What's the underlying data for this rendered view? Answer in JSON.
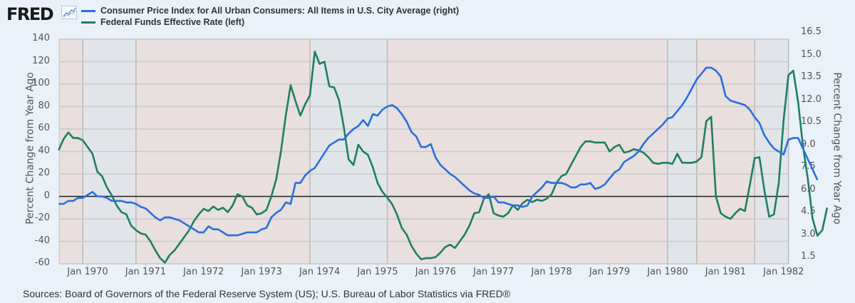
{
  "header": {
    "logo": "FRED",
    "logo_icon": "line-chart-icon"
  },
  "footer": {
    "source": "Sources: Board of Governors of the Federal Reserve System (US); U.S. Bureau of Labor Statistics via FRED®"
  },
  "colors": {
    "cpi": "#2a6fdb",
    "fedfunds": "#1e7e63",
    "recession_band": "#e1e5ea",
    "expansion_band": "#e8dfde",
    "background": "#eaf1f9",
    "gridline": "#c9c9c9",
    "zero_line": "#222222"
  },
  "chart_data": {
    "type": "line",
    "title": "",
    "legend": [
      {
        "name": "Consumer Price Index for All Urban Consumers: All Items in U.S. City Average (right)",
        "key": "cpi"
      },
      {
        "name": "Federal Funds Effective Rate (left)",
        "key": "fedfunds"
      }
    ],
    "legend_position": "top-left",
    "ylabel_left": "Percent Change from Year Ago",
    "ylabel_right": "Percent Change from Year Ago",
    "ylim_left": [
      -60,
      140
    ],
    "ylim_right": [
      1.5,
      16.5
    ],
    "yticks_left": [
      "140",
      "120",
      "100",
      "80",
      "60",
      "40",
      "20",
      "0",
      "-20",
      "-40",
      "-60"
    ],
    "yticks_right": [
      "16.5",
      "15.0",
      "13.5",
      "12.0",
      "10.5",
      "9.0",
      "7.5",
      "6.0",
      "4.5",
      "3.0",
      "1.5"
    ],
    "xticks": [
      "Jan 1970",
      "Jan 1971",
      "Jan 1972",
      "Jan 1973",
      "Jan 1974",
      "Jan 1975",
      "Jan 1976",
      "Jan 1977",
      "Jan 1978",
      "Jan 1979",
      "Jan 1980",
      "Jan 1981",
      "Jan 1982"
    ],
    "x_start": "1969-07",
    "x_end": "1982-02",
    "grid": true,
    "recessions": [
      [
        "1969-12",
        "1970-11"
      ],
      [
        "1973-11",
        "1975-03"
      ],
      [
        "1980-01",
        "1980-07"
      ],
      [
        "1981-07",
        "1982-02"
      ]
    ],
    "series": [
      {
        "name": "Federal Funds Effective Rate (left)",
        "axis": "left",
        "start": "1969-07",
        "values": [
          41,
          51,
          57,
          52,
          52,
          50,
          44,
          38,
          22,
          18,
          8,
          1,
          -8,
          -14,
          -16,
          -26,
          -30,
          -33,
          -34,
          -40,
          -48,
          -55,
          -59,
          -52,
          -48,
          -42,
          -36,
          -30,
          -22,
          -16,
          -11,
          -13,
          -9,
          -12,
          -10,
          -14,
          -8,
          2,
          0,
          -8,
          -10,
          -16,
          -15,
          -12,
          0,
          15,
          40,
          72,
          99,
          85,
          72,
          82,
          90,
          129,
          118,
          120,
          98,
          97,
          86,
          62,
          33,
          28,
          46,
          40,
          37,
          26,
          12,
          4,
          -1,
          -7,
          -16,
          -28,
          -34,
          -44,
          -51,
          -56,
          -55,
          -55,
          -54,
          -50,
          -45,
          -43,
          -46,
          -40,
          -34,
          -26,
          -15,
          -14,
          -2,
          2,
          -15,
          -17,
          -18,
          -15,
          -8,
          -12,
          -6,
          -3,
          -5,
          -3,
          -4,
          -2,
          2,
          12,
          18,
          20,
          28,
          36,
          44,
          49,
          49,
          48,
          48,
          48,
          40,
          44,
          46,
          39,
          40,
          42,
          41,
          39,
          35,
          30,
          29,
          30,
          30,
          29,
          38,
          30,
          30,
          30,
          31,
          35,
          67,
          71,
          0,
          -15,
          -18,
          -20,
          -15,
          -11,
          -13,
          10,
          34,
          35,
          6,
          -18,
          -16,
          12,
          68,
          108,
          112,
          84,
          45,
          16,
          -20,
          -35,
          -30,
          -10
        ]
      },
      {
        "name": "Consumer Price Index for All Urban Consumers: All Items in U.S. City Average (right)",
        "axis": "right",
        "start": "1969-07",
        "values": [
          5.5,
          5.5,
          5.7,
          5.7,
          5.9,
          5.9,
          6.1,
          6.3,
          6.0,
          6.0,
          5.9,
          5.7,
          5.7,
          5.7,
          5.6,
          5.6,
          5.5,
          5.3,
          5.2,
          4.9,
          4.6,
          4.4,
          4.6,
          4.6,
          4.5,
          4.4,
          4.2,
          4.0,
          3.8,
          3.6,
          3.6,
          4.0,
          3.8,
          3.8,
          3.6,
          3.4,
          3.4,
          3.4,
          3.5,
          3.6,
          3.6,
          3.6,
          3.8,
          3.9,
          4.6,
          4.9,
          5.1,
          5.6,
          5.5,
          6.9,
          6.9,
          7.4,
          7.7,
          7.9,
          8.4,
          8.9,
          9.4,
          9.6,
          9.8,
          9.8,
          10.2,
          10.5,
          10.7,
          11.1,
          10.7,
          11.5,
          11.4,
          11.8,
          12.0,
          12.1,
          11.9,
          11.5,
          11.0,
          10.3,
          10.0,
          9.3,
          9.3,
          9.5,
          8.6,
          8.1,
          7.8,
          7.5,
          7.3,
          7.0,
          6.7,
          6.4,
          6.2,
          6.1,
          5.9,
          5.9,
          6.0,
          5.6,
          5.6,
          5.5,
          5.4,
          5.4,
          5.3,
          5.4,
          6.0,
          6.3,
          6.6,
          7.0,
          6.9,
          6.9,
          6.9,
          6.8,
          6.6,
          6.6,
          6.8,
          6.8,
          6.9,
          6.5,
          6.6,
          6.8,
          7.2,
          7.6,
          7.8,
          8.3,
          8.5,
          8.7,
          9.0,
          9.5,
          9.9,
          10.2,
          10.5,
          10.8,
          11.2,
          11.3,
          11.7,
          12.1,
          12.6,
          13.2,
          13.8,
          14.2,
          14.6,
          14.6,
          14.4,
          14.0,
          12.7,
          12.4,
          12.3,
          12.2,
          12.1,
          11.8,
          11.3,
          10.9,
          10.1,
          9.6,
          9.2,
          9.0,
          8.8,
          9.8,
          9.9,
          9.9,
          9.2,
          8.5,
          7.8,
          7.1
        ]
      }
    ]
  }
}
